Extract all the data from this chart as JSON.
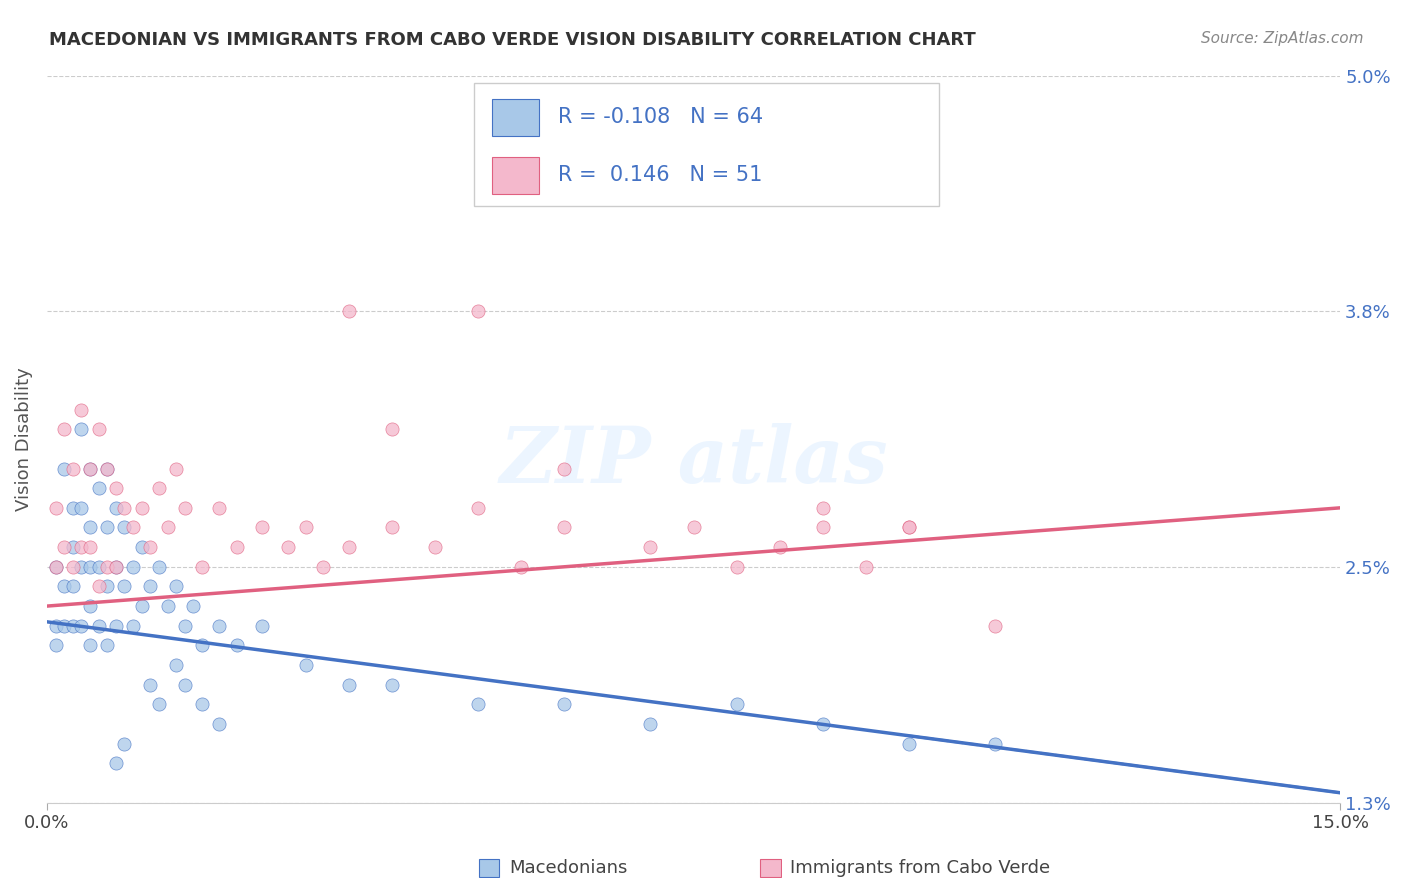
{
  "title": "MACEDONIAN VS IMMIGRANTS FROM CABO VERDE VISION DISABILITY CORRELATION CHART",
  "source": "Source: ZipAtlas.com",
  "ylabel": "Vision Disability",
  "x_min": 0.0,
  "x_max": 0.15,
  "y_min": 0.013,
  "y_max": 0.05,
  "y_ticks": [
    0.013,
    0.025,
    0.038,
    0.05
  ],
  "y_tick_labels": [
    "1.3%",
    "2.5%",
    "3.8%",
    "5.0%"
  ],
  "legend_R1": "-0.108",
  "legend_N1": "64",
  "legend_R2": " 0.146",
  "legend_N2": "51",
  "color_blue": "#a8c8e8",
  "color_blue_line": "#4472c4",
  "color_pink": "#f4b8cc",
  "color_pink_line": "#e06080",
  "legend_label1": "Macedonians",
  "legend_label2": "Immigrants from Cabo Verde",
  "blue_trend_x0": 0.0,
  "blue_trend_y0": 0.0222,
  "blue_trend_x1": 0.15,
  "blue_trend_y1": 0.0135,
  "pink_trend_x0": 0.0,
  "pink_trend_y0": 0.023,
  "pink_trend_x1": 0.15,
  "pink_trend_y1": 0.028,
  "blue_x": [
    0.001,
    0.001,
    0.001,
    0.002,
    0.002,
    0.002,
    0.003,
    0.003,
    0.003,
    0.003,
    0.004,
    0.004,
    0.004,
    0.004,
    0.005,
    0.005,
    0.005,
    0.005,
    0.005,
    0.006,
    0.006,
    0.006,
    0.007,
    0.007,
    0.007,
    0.007,
    0.008,
    0.008,
    0.008,
    0.009,
    0.009,
    0.01,
    0.01,
    0.011,
    0.011,
    0.012,
    0.013,
    0.014,
    0.015,
    0.016,
    0.017,
    0.018,
    0.02,
    0.022,
    0.025,
    0.03,
    0.035,
    0.04,
    0.05,
    0.06,
    0.065,
    0.07,
    0.08,
    0.09,
    0.1,
    0.11,
    0.015,
    0.016,
    0.018,
    0.02,
    0.012,
    0.013,
    0.009,
    0.008
  ],
  "blue_y": [
    0.025,
    0.022,
    0.021,
    0.03,
    0.024,
    0.022,
    0.028,
    0.026,
    0.024,
    0.022,
    0.032,
    0.028,
    0.025,
    0.022,
    0.03,
    0.027,
    0.025,
    0.023,
    0.021,
    0.029,
    0.025,
    0.022,
    0.03,
    0.027,
    0.024,
    0.021,
    0.028,
    0.025,
    0.022,
    0.027,
    0.024,
    0.025,
    0.022,
    0.026,
    0.023,
    0.024,
    0.025,
    0.023,
    0.024,
    0.022,
    0.023,
    0.021,
    0.022,
    0.021,
    0.022,
    0.02,
    0.019,
    0.019,
    0.018,
    0.018,
    0.048,
    0.017,
    0.018,
    0.017,
    0.016,
    0.016,
    0.02,
    0.019,
    0.018,
    0.017,
    0.019,
    0.018,
    0.016,
    0.015
  ],
  "pink_x": [
    0.001,
    0.001,
    0.002,
    0.002,
    0.003,
    0.003,
    0.004,
    0.004,
    0.005,
    0.005,
    0.006,
    0.006,
    0.007,
    0.007,
    0.008,
    0.008,
    0.009,
    0.01,
    0.011,
    0.012,
    0.013,
    0.014,
    0.015,
    0.016,
    0.018,
    0.02,
    0.022,
    0.025,
    0.028,
    0.03,
    0.032,
    0.035,
    0.04,
    0.045,
    0.05,
    0.055,
    0.06,
    0.07,
    0.075,
    0.08,
    0.085,
    0.09,
    0.095,
    0.1,
    0.11,
    0.035,
    0.04,
    0.05,
    0.06,
    0.09,
    0.1
  ],
  "pink_y": [
    0.028,
    0.025,
    0.032,
    0.026,
    0.03,
    0.025,
    0.033,
    0.026,
    0.03,
    0.026,
    0.032,
    0.024,
    0.03,
    0.025,
    0.029,
    0.025,
    0.028,
    0.027,
    0.028,
    0.026,
    0.029,
    0.027,
    0.03,
    0.028,
    0.025,
    0.028,
    0.026,
    0.027,
    0.026,
    0.027,
    0.025,
    0.026,
    0.027,
    0.026,
    0.028,
    0.025,
    0.027,
    0.026,
    0.027,
    0.025,
    0.026,
    0.027,
    0.025,
    0.027,
    0.022,
    0.038,
    0.032,
    0.038,
    0.03,
    0.028,
    0.027
  ]
}
